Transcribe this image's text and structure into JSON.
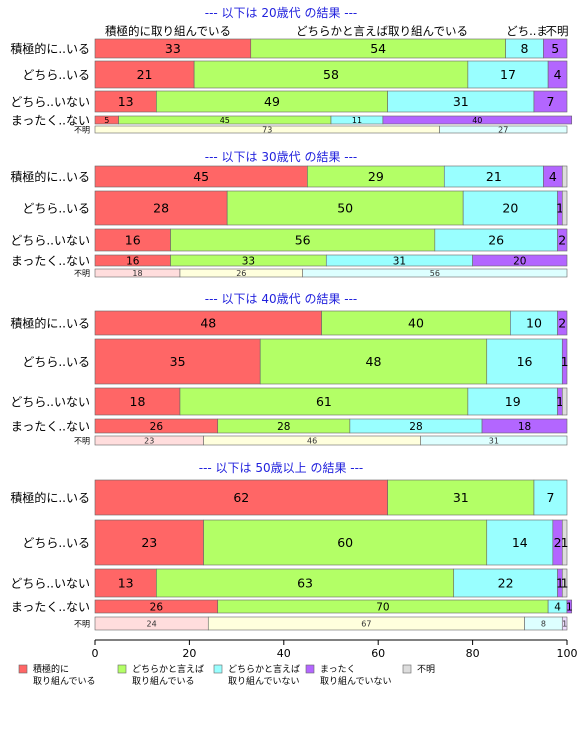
{
  "chart_data": {
    "type": "bar",
    "orientation": "horizontal-stacked-100",
    "xlim": [
      0,
      100
    ],
    "x_ticks": [
      "0",
      "20",
      "40",
      "60",
      "80",
      "100"
    ],
    "grid": false,
    "legend_position": "bottom",
    "series_colors": [
      "#ff6666",
      "#b3ff66",
      "#99ffff",
      "#b366ff",
      "#dddddd"
    ],
    "legend": [
      {
        "label_line1": "積極的に",
        "label_line2": "取り組んでいる"
      },
      {
        "label_line1": "どちらかと言えば",
        "label_line2": "取り組んでいる"
      },
      {
        "label_line1": "どちらかと言えば",
        "label_line2": "取り組んでいない"
      },
      {
        "label_line1": "まったく",
        "label_line2": "取り組んでいない"
      },
      {
        "label_line1": "不明",
        "label_line2": ""
      }
    ],
    "top_headers": [
      "積極的に取り組んでいる",
      "どちらかと言えば取り組んでいる",
      "どち..ま",
      "不明"
    ],
    "panels": [
      {
        "title": "--- 以下は 20歳代 の結果 ---",
        "rows": [
          {
            "label": "積極的に..いる",
            "values": [
              33,
              54,
              8,
              5,
              0
            ],
            "texts": [
              "33",
              "54",
              "8",
              "5",
              ""
            ]
          },
          {
            "label": "どちら..いる",
            "values": [
              21,
              58,
              17,
              4,
              0
            ],
            "texts": [
              "21",
              "58",
              "17",
              "4",
              ""
            ]
          },
          {
            "label": "どちら..いない",
            "values": [
              13,
              49,
              31,
              7,
              0
            ],
            "texts": [
              "13",
              "49",
              "31",
              "7",
              ""
            ]
          },
          {
            "label": "まったく..ない",
            "values": [
              5,
              45,
              11,
              40,
              0
            ],
            "texts": [
              "5",
              "45",
              "11",
              "40",
              ""
            ]
          }
        ],
        "unknown_row": {
          "label": "不明",
          "values": [
            0,
            73,
            27,
            0,
            0
          ],
          "texts": [
            "",
            "73",
            "27",
            "",
            ""
          ]
        }
      },
      {
        "title": "--- 以下は 30歳代 の結果 ---",
        "rows": [
          {
            "label": "積極的に..いる",
            "values": [
              45,
              29,
              21,
              4,
              1
            ],
            "texts": [
              "45",
              "29",
              "21",
              "4",
              ""
            ]
          },
          {
            "label": "どちら..いる",
            "values": [
              28,
              50,
              20,
              1,
              1
            ],
            "texts": [
              "28",
              "50",
              "20",
              "1",
              ""
            ]
          },
          {
            "label": "どちら..いない",
            "values": [
              16,
              56,
              26,
              2,
              0
            ],
            "texts": [
              "16",
              "56",
              "26",
              "2",
              ""
            ]
          },
          {
            "label": "まったく..ない",
            "values": [
              16,
              33,
              31,
              20,
              0
            ],
            "texts": [
              "16",
              "33",
              "31",
              "20",
              ""
            ]
          }
        ],
        "unknown_row": {
          "label": "不明",
          "values": [
            18,
            26,
            56,
            0,
            0
          ],
          "texts": [
            "18",
            "26",
            "56",
            "",
            ""
          ]
        }
      },
      {
        "title": "--- 以下は 40歳代 の結果 ---",
        "rows": [
          {
            "label": "積極的に..いる",
            "values": [
              48,
              40,
              10,
              2,
              0
            ],
            "texts": [
              "48",
              "40",
              "10",
              "2",
              ""
            ]
          },
          {
            "label": "どちら..いる",
            "values": [
              35,
              48,
              16,
              1,
              0
            ],
            "texts": [
              "35",
              "48",
              "16",
              "1",
              ""
            ]
          },
          {
            "label": "どちら..いない",
            "values": [
              18,
              61,
              19,
              1,
              1
            ],
            "texts": [
              "18",
              "61",
              "19",
              "1",
              ""
            ]
          },
          {
            "label": "まったく..ない",
            "values": [
              26,
              28,
              28,
              18,
              0
            ],
            "texts": [
              "26",
              "28",
              "28",
              "18",
              ""
            ]
          }
        ],
        "unknown_row": {
          "label": "不明",
          "values": [
            23,
            46,
            31,
            0,
            0
          ],
          "texts": [
            "23",
            "46",
            "31",
            "",
            ""
          ]
        }
      },
      {
        "title": "--- 以下は 50歳以上 の結果 ---",
        "rows": [
          {
            "label": "積極的に..いる",
            "values": [
              62,
              31,
              7,
              0,
              0
            ],
            "texts": [
              "62",
              "31",
              "7",
              "",
              ""
            ]
          },
          {
            "label": "どちら..いる",
            "values": [
              23,
              60,
              14,
              2,
              1
            ],
            "texts": [
              "23",
              "60",
              "14",
              "2",
              "1"
            ]
          },
          {
            "label": "どちら..いない",
            "values": [
              13,
              63,
              22,
              1,
              1
            ],
            "texts": [
              "13",
              "63",
              "22",
              "1",
              "1"
            ]
          },
          {
            "label": "まったく..ない",
            "values": [
              26,
              70,
              4,
              1,
              0
            ],
            "texts": [
              "26",
              "70",
              "4",
              "1",
              ""
            ]
          }
        ],
        "unknown_row": {
          "label": "不明",
          "values": [
            24,
            67,
            8,
            1,
            0
          ],
          "texts": [
            "24",
            "67",
            "8",
            "1",
            ""
          ]
        }
      }
    ]
  }
}
